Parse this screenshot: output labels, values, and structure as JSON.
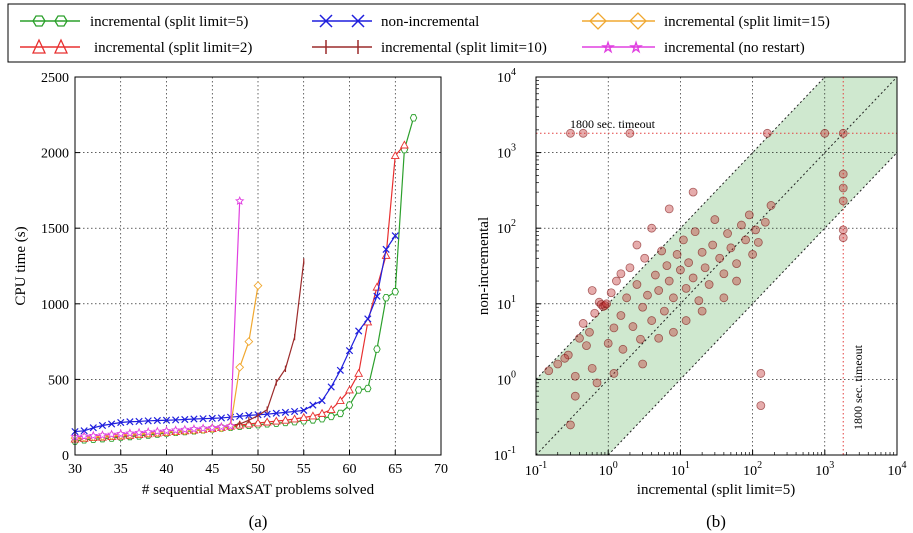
{
  "legend": [
    {
      "label": "incremental (split limit=5)",
      "color": "#2ca02c",
      "marker": "hexagon"
    },
    {
      "label": "non-incremental",
      "color": "#1f1fdd",
      "marker": "x"
    },
    {
      "label": "incremental (split limit=15)",
      "color": "#f0a830",
      "marker": "diamond"
    },
    {
      "label": "incremental (split limit=2)",
      "color": "#e83030",
      "marker": "triangle"
    },
    {
      "label": "incremental (split limit=10)",
      "color": "#9c2b2b",
      "marker": "plus"
    },
    {
      "label": "incremental (no restart)",
      "color": "#e040e0",
      "marker": "star"
    }
  ],
  "captions": {
    "a": "(a)",
    "b": "(b)"
  },
  "annotations": {
    "timeout_h": "1800 sec. timeout",
    "timeout_v": "1800 sec. timeout"
  },
  "chart_data": [
    {
      "type": "line",
      "xlabel": "# sequential MaxSAT problems solved",
      "ylabel": "CPU time (s)",
      "xlim": [
        30,
        70
      ],
      "ylim": [
        0,
        2500
      ],
      "xticks": [
        "30",
        "35",
        "40",
        "45",
        "50",
        "55",
        "60",
        "65",
        "70"
      ],
      "yticks": [
        "0",
        "500",
        "1000",
        "1500",
        "2000",
        "2500"
      ],
      "grid": true,
      "series": [
        {
          "name": "incremental (split limit=5)",
          "color": "#2ca02c",
          "marker": "hexagon",
          "x": [
            30,
            31,
            32,
            33,
            34,
            35,
            36,
            37,
            38,
            39,
            40,
            41,
            42,
            43,
            44,
            45,
            46,
            47,
            48,
            49,
            50,
            51,
            52,
            53,
            54,
            55,
            56,
            57,
            58,
            59,
            60,
            61,
            62,
            63,
            64,
            65,
            66,
            67
          ],
          "y": [
            92,
            100,
            104,
            108,
            112,
            118,
            122,
            126,
            132,
            138,
            145,
            150,
            155,
            160,
            166,
            172,
            178,
            184,
            190,
            196,
            200,
            206,
            210,
            215,
            220,
            226,
            232,
            240,
            255,
            275,
            330,
            430,
            440,
            700,
            1040,
            1080,
            2020,
            2230
          ]
        },
        {
          "name": "incremental (split limit=2)",
          "color": "#e83030",
          "marker": "triangle",
          "x": [
            30,
            31,
            32,
            33,
            34,
            35,
            36,
            37,
            38,
            39,
            40,
            41,
            42,
            43,
            44,
            45,
            46,
            47,
            48,
            49,
            50,
            51,
            52,
            53,
            54,
            55,
            56,
            57,
            58,
            59,
            60,
            61,
            62,
            63,
            64,
            65,
            66
          ],
          "y": [
            105,
            110,
            115,
            118,
            122,
            125,
            130,
            135,
            140,
            145,
            150,
            155,
            160,
            165,
            170,
            175,
            182,
            190,
            198,
            205,
            212,
            218,
            224,
            230,
            238,
            248,
            258,
            275,
            300,
            360,
            430,
            540,
            880,
            1110,
            1320,
            1980,
            2050
          ]
        },
        {
          "name": "non-incremental",
          "color": "#1f1fdd",
          "marker": "x",
          "x": [
            30,
            31,
            32,
            33,
            34,
            35,
            36,
            37,
            38,
            39,
            40,
            41,
            42,
            43,
            44,
            45,
            46,
            47,
            48,
            49,
            50,
            51,
            52,
            53,
            54,
            55,
            56,
            57,
            58,
            59,
            60,
            61,
            62,
            63,
            64,
            65
          ],
          "y": [
            155,
            160,
            180,
            195,
            205,
            215,
            220,
            222,
            226,
            228,
            230,
            232,
            235,
            238,
            240,
            242,
            245,
            250,
            256,
            262,
            266,
            270,
            276,
            282,
            288,
            295,
            330,
            360,
            450,
            560,
            690,
            820,
            900,
            1050,
            1360,
            1450
          ]
        },
        {
          "name": "incremental (split limit=10)",
          "color": "#9c2b2b",
          "marker": "plus",
          "x": [
            30,
            31,
            32,
            33,
            34,
            35,
            36,
            37,
            38,
            39,
            40,
            41,
            42,
            43,
            44,
            45,
            46,
            47,
            48,
            49,
            50,
            51,
            52,
            53,
            54,
            55
          ],
          "y": [
            118,
            122,
            126,
            130,
            134,
            138,
            142,
            146,
            150,
            154,
            158,
            162,
            166,
            170,
            175,
            182,
            188,
            195,
            205,
            230,
            260,
            300,
            480,
            570,
            780,
            1280
          ]
        },
        {
          "name": "incremental (split limit=15)",
          "color": "#f0a830",
          "marker": "diamond",
          "x": [
            30,
            31,
            32,
            33,
            34,
            35,
            36,
            37,
            38,
            39,
            40,
            41,
            42,
            43,
            44,
            45,
            46,
            47,
            48,
            49,
            50
          ],
          "y": [
            112,
            116,
            120,
            124,
            128,
            132,
            136,
            140,
            144,
            148,
            152,
            156,
            160,
            164,
            168,
            175,
            180,
            190,
            580,
            750,
            1120
          ]
        },
        {
          "name": "incremental (no restart)",
          "color": "#e040e0",
          "marker": "star",
          "x": [
            30,
            31,
            32,
            33,
            34,
            35,
            36,
            37,
            38,
            39,
            40,
            41,
            42,
            43,
            44,
            45,
            46,
            47,
            48
          ],
          "y": [
            120,
            124,
            128,
            132,
            136,
            140,
            144,
            148,
            152,
            156,
            160,
            164,
            168,
            172,
            176,
            180,
            186,
            192,
            1680
          ]
        }
      ]
    },
    {
      "type": "scatter",
      "xlabel": "incremental (split limit=5)",
      "ylabel": "non-incremental",
      "xscale": "log",
      "yscale": "log",
      "xlim": [
        0.1,
        10000
      ],
      "ylim": [
        0.1,
        10000
      ],
      "xticks": [
        "10^-1",
        "10^0",
        "10^1",
        "10^2",
        "10^3",
        "10^4"
      ],
      "yticks": [
        "10^-1",
        "10^0",
        "10^1",
        "10^2",
        "10^3",
        "10^4"
      ],
      "timeout": 1800,
      "band_factor": 10,
      "grid": true,
      "points": [
        [
          0.3,
          1800
        ],
        [
          0.45,
          1800
        ],
        [
          2,
          1800
        ],
        [
          160,
          1800
        ],
        [
          1000,
          1800
        ],
        [
          1800,
          1800
        ],
        [
          1800,
          520
        ],
        [
          1800,
          340
        ],
        [
          1800,
          230
        ],
        [
          1800,
          95
        ],
        [
          1800,
          75
        ],
        [
          0.15,
          1.3
        ],
        [
          0.2,
          1.6
        ],
        [
          0.28,
          2.1
        ],
        [
          0.3,
          0.25
        ],
        [
          0.35,
          1.1
        ],
        [
          0.4,
          3.5
        ],
        [
          0.45,
          5.5
        ],
        [
          0.5,
          2.8
        ],
        [
          0.55,
          4.2
        ],
        [
          0.6,
          1.4
        ],
        [
          0.65,
          7.5
        ],
        [
          0.75,
          10.5
        ],
        [
          0.85,
          9.2
        ],
        [
          0.8,
          9.8
        ],
        [
          0.9,
          9.5
        ],
        [
          0.95,
          10
        ],
        [
          1,
          3
        ],
        [
          1.1,
          14
        ],
        [
          1.2,
          4.8
        ],
        [
          1.3,
          20
        ],
        [
          1.5,
          7
        ],
        [
          1.6,
          2.5
        ],
        [
          1.8,
          12
        ],
        [
          2,
          30
        ],
        [
          2.2,
          5
        ],
        [
          2.5,
          18
        ],
        [
          2.8,
          3.4
        ],
        [
          3,
          9
        ],
        [
          3.2,
          40
        ],
        [
          3.5,
          13
        ],
        [
          4,
          6
        ],
        [
          4.5,
          24
        ],
        [
          5,
          15
        ],
        [
          5.5,
          50
        ],
        [
          6,
          8
        ],
        [
          6.5,
          32
        ],
        [
          7,
          20
        ],
        [
          8,
          12
        ],
        [
          9,
          45
        ],
        [
          10,
          28
        ],
        [
          11,
          70
        ],
        [
          12,
          16
        ],
        [
          13,
          35
        ],
        [
          15,
          22
        ],
        [
          16,
          90
        ],
        [
          18,
          11
        ],
        [
          20,
          48
        ],
        [
          22,
          30
        ],
        [
          25,
          18
        ],
        [
          28,
          60
        ],
        [
          30,
          130
        ],
        [
          35,
          40
        ],
        [
          40,
          25
        ],
        [
          45,
          85
        ],
        [
          50,
          55
        ],
        [
          60,
          34
        ],
        [
          70,
          110
        ],
        [
          80,
          70
        ],
        [
          90,
          150
        ],
        [
          100,
          45
        ],
        [
          110,
          95
        ],
        [
          120,
          65
        ],
        [
          150,
          120
        ],
        [
          180,
          200
        ],
        [
          130,
          1.2
        ],
        [
          130,
          0.45
        ],
        [
          3,
          1.6
        ],
        [
          5,
          3.5
        ],
        [
          8,
          4.2
        ],
        [
          12,
          6
        ],
        [
          0.7,
          0.9
        ],
        [
          0.25,
          1.9
        ],
        [
          20,
          8
        ],
        [
          40,
          12
        ],
        [
          60,
          20
        ],
        [
          2.5,
          60
        ],
        [
          1.5,
          25
        ],
        [
          0.6,
          15
        ],
        [
          4,
          100
        ],
        [
          7,
          180
        ],
        [
          15,
          300
        ],
        [
          1.2,
          1.2
        ],
        [
          0.35,
          0.6
        ]
      ]
    }
  ]
}
